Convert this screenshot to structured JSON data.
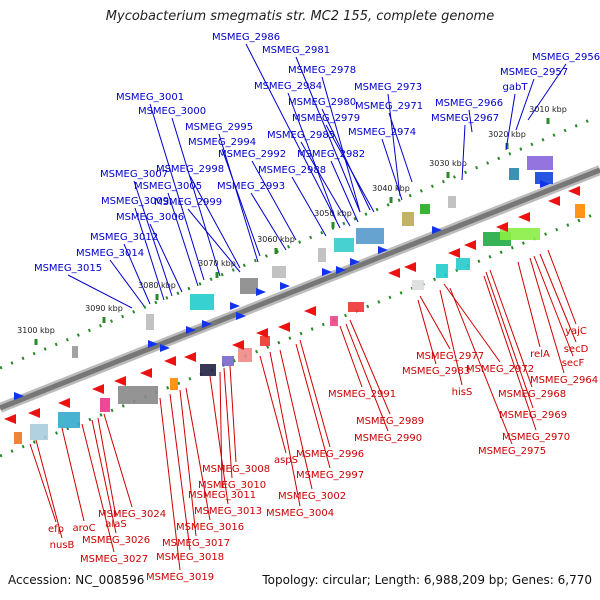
{
  "title": "Mycobacterium smegmatis str. MC2 155, complete genome",
  "footer": {
    "accession": "Accession: NC_008596",
    "summary": "Topology: circular; Length: 6,988,209 bp; Genes: 6,770"
  },
  "colors": {
    "forward_label": "#0000cc",
    "reverse_label": "#cc0000",
    "backbone": "#888888",
    "tick": "#2a8a2a"
  },
  "scale_ticks": [
    "3010 kbp",
    "3020 kbp",
    "3030 kbp",
    "3040 kbp",
    "3050 kbp",
    "3060 kbp",
    "3070 kbp",
    "3080 kbp",
    "3090 kbp",
    "3100 kbp"
  ],
  "forward_genes": [
    "MSMEG_2956",
    "MSMEG_2957",
    "gabT",
    "MSMEG_2966",
    "MSMEG_2967",
    "MSMEG_2971",
    "MSMEG_2973",
    "MSMEG_2974",
    "MSMEG_2978",
    "MSMEG_2979",
    "MSMEG_2980",
    "MSMEG_2981",
    "MSMEG_2982",
    "MSMEG_2984",
    "MSMEG_2985",
    "MSMEG_2986",
    "MSMEG_2988",
    "MSMEG_2992",
    "MSMEG_2993",
    "MSMEG_2994",
    "MSMEG_2995",
    "MSMEG_2998",
    "MSMEG_2999",
    "MSMEG_3000",
    "MSMEG_3001",
    "MSMEG_3005",
    "MSMEG_3006",
    "MSMEG_3007",
    "MSMEG_3009",
    "MSMEG_3012",
    "MSMEG_3014",
    "MSMEG_3015"
  ],
  "reverse_genes": [
    "yajC",
    "secD",
    "secF",
    "relA",
    "MSMEG_2964",
    "MSMEG_2968",
    "MSMEG_2969",
    "MSMEG_2970",
    "MSMEG_2972",
    "hisS",
    "MSMEG_2975",
    "MSMEG_2977",
    "MSMEG_2983",
    "MSMEG_2989",
    "MSMEG_2990",
    "MSMEG_2991",
    "MSMEG_2996",
    "MSMEG_2997",
    "aspS",
    "MSMEG_3002",
    "MSMEG_3004",
    "MSMEG_3008",
    "MSMEG_3010",
    "MSMEG_3011",
    "MSMEG_3013",
    "MSMEG_3016",
    "MSMEG_3017",
    "MSMEG_3018",
    "MSMEG_3019",
    "MSMEG_3024",
    "alaS",
    "MSMEG_3026",
    "aroC",
    "MSMEG_3027",
    "nusB",
    "efp"
  ]
}
